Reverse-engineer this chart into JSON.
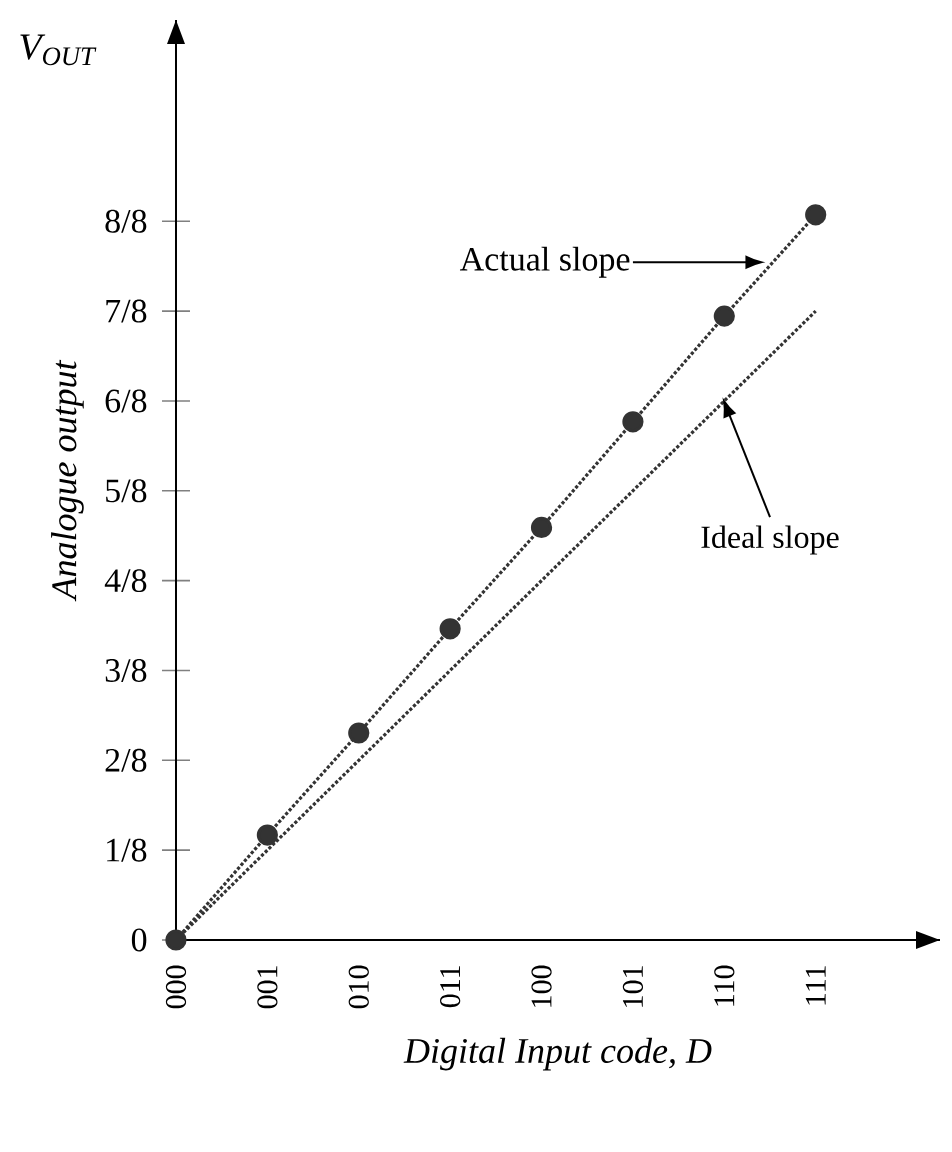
{
  "chart_data": {
    "type": "line",
    "xlabel": "Digital Input code, D",
    "ylabel": "Analogue output",
    "categories": [
      "000",
      "001",
      "010",
      "011",
      "100",
      "101",
      "110",
      "111"
    ],
    "series": [
      {
        "color": "#333333",
        "marker": "circle",
        "line_style": "dotted",
        "values": [
          0,
          0.146,
          0.288,
          0.433,
          0.574,
          0.721,
          0.868,
          1.009
        ]
      },
      {
        "color": "#333333",
        "marker": "none",
        "line_style": "dotted",
        "values": [
          0,
          0.125,
          0.25,
          0.375,
          0.5,
          0.625,
          0.75,
          0.875
        ]
      }
    ],
    "ylim": [
      0,
      1.28
    ],
    "yticks": [
      {
        "value": 0,
        "label": "0"
      },
      {
        "value": 0.125,
        "label": "1/8"
      },
      {
        "value": 0.25,
        "label": "2/8"
      },
      {
        "value": 0.375,
        "label": "3/8"
      },
      {
        "value": 0.5,
        "label": "4/8"
      },
      {
        "value": 0.625,
        "label": "5/8"
      },
      {
        "value": 0.75,
        "label": "6/8"
      },
      {
        "value": 0.875,
        "label": "7/8"
      },
      {
        "value": 1,
        "label": "8/8"
      }
    ],
    "annotations": [
      "V$_{OUT}$",
      "Actual slope",
      "Ideal slope"
    ],
    "grid": false
  }
}
